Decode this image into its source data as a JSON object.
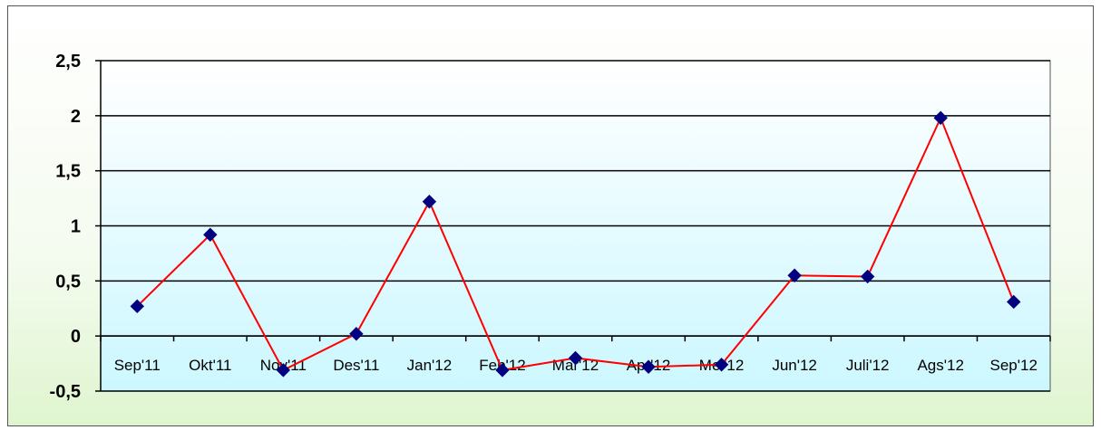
{
  "chart_data": {
    "type": "line",
    "title": "",
    "xlabel": "",
    "ylabel": "",
    "categories": [
      "Sep'11",
      "Okt'11",
      "Nov'11",
      "Des'11",
      "Jan'12",
      "Feb'12",
      "Mar'12",
      "Apr'12",
      "Mei'12",
      "Jun'12",
      "Juli'12",
      "Ags'12",
      "Sep'12"
    ],
    "series": [
      {
        "values": [
          0.27,
          0.92,
          -0.31,
          0.02,
          1.22,
          -0.31,
          -0.2,
          -0.28,
          -0.26,
          0.55,
          0.54,
          1.98,
          0.31
        ]
      }
    ],
    "ylim": [
      -0.5,
      2.5
    ],
    "yticks": [
      -0.5,
      0,
      0.5,
      1,
      1.5,
      2,
      2.5
    ],
    "ytick_labels": [
      "-0,5",
      "0",
      "0,5",
      "1",
      "1,5",
      "2",
      "2,5"
    ],
    "grid": true,
    "legend": "none",
    "colors": {
      "line": "#ff0000",
      "marker": "#000080",
      "plot_bg_top": "#ffffff",
      "plot_bg_bottom": "#ccf7ff",
      "grid": "#000000"
    }
  }
}
